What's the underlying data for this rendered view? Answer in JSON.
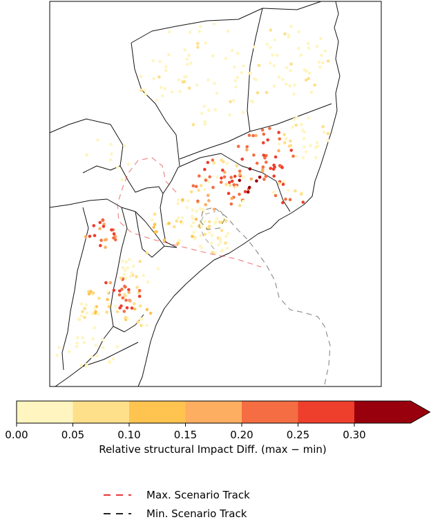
{
  "colorbar": {
    "label": "Relative structural Impact Diff. (max − min)",
    "ticks": [
      "0.00",
      "0.05",
      "0.10",
      "0.15",
      "0.20",
      "0.25",
      "0.30"
    ],
    "bins": [
      {
        "range": [
          0.0,
          0.05
        ],
        "color": "#fff5c0"
      },
      {
        "range": [
          0.05,
          0.1
        ],
        "color": "#fee08b"
      },
      {
        "range": [
          0.1,
          0.15
        ],
        "color": "#fec44f"
      },
      {
        "range": [
          0.15,
          0.2
        ],
        "color": "#fdae61"
      },
      {
        "range": [
          0.2,
          0.25
        ],
        "color": "#f46d43"
      },
      {
        "range": [
          0.25,
          0.3
        ],
        "color": "#ee3e2c"
      },
      {
        "range": [
          0.3,
          null
        ],
        "color": "#99000d"
      }
    ]
  },
  "legend": {
    "max_track": {
      "label": "Max. Scenario Track",
      "color": "#e8353a"
    },
    "min_track": {
      "label": "Min. Scenario Track",
      "color": "#222222"
    }
  }
}
